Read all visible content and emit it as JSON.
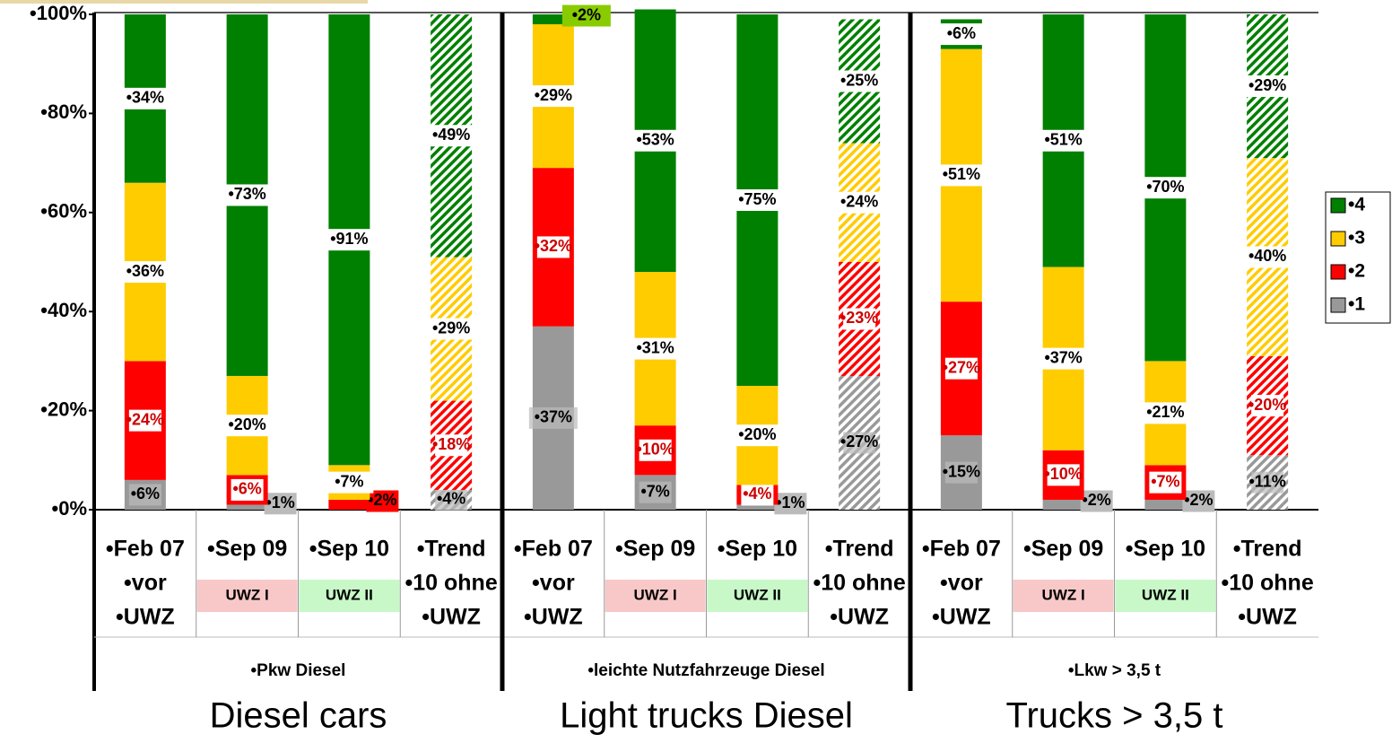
{
  "chart_data": {
    "type": "bar",
    "stacked": true,
    "ylim": [
      0,
      100
    ],
    "yticks": [
      {
        "value": 0,
        "label": "•0%"
      },
      {
        "value": 20,
        "label": "•20%"
      },
      {
        "value": 40,
        "label": "•40%"
      },
      {
        "value": 60,
        "label": "•60%"
      },
      {
        "value": 80,
        "label": "•80%"
      },
      {
        "value": 100,
        "label": "•100%"
      }
    ],
    "groups": [
      {
        "label": "•Pkw Diesel",
        "caption": "Diesel cars",
        "categories": [
          [
            "•Feb 07",
            "•vor",
            "•UWZ"
          ],
          [
            "•Sep 09"
          ],
          [
            "•Sep 10"
          ],
          [
            "•Trend",
            "•10 ohne",
            "•UWZ"
          ]
        ],
        "tags": [
          null,
          "UWZ I",
          "UWZ II",
          null
        ]
      },
      {
        "label": "•leichte Nutzfahrzeuge Diesel",
        "caption": "Light trucks Diesel",
        "categories": [
          [
            "•Feb 07",
            "•vor",
            "•UWZ"
          ],
          [
            "•Sep 09"
          ],
          [
            "•Sep 10"
          ],
          [
            "•Trend",
            "•10 ohne",
            "•UWZ"
          ]
        ],
        "tags": [
          null,
          "UWZ I",
          "UWZ II",
          null
        ]
      },
      {
        "label": "•Lkw > 3,5 t",
        "caption": "Trucks > 3,5 t",
        "categories": [
          [
            "•Feb 07",
            "•vor",
            "•UWZ"
          ],
          [
            "•Sep 09"
          ],
          [
            "•Sep 10"
          ],
          [
            "•Trend",
            "•10 ohne",
            "•UWZ"
          ]
        ],
        "tags": [
          null,
          "UWZ I",
          "UWZ II",
          null
        ]
      }
    ],
    "hatched": [
      false,
      false,
      false,
      true,
      false,
      false,
      false,
      true,
      false,
      false,
      false,
      true
    ],
    "series": [
      {
        "name": "•1",
        "color": "#999999",
        "values": [
          6,
          1,
          0,
          4,
          37,
          7,
          1,
          27,
          15,
          2,
          2,
          11
        ],
        "value_labels": [
          "•6%",
          "•1%",
          null,
          "•4%",
          "•37%",
          "•7%",
          "•1%",
          "•27%",
          "•15%",
          "•2%",
          "•2%",
          "•11%"
        ]
      },
      {
        "name": "•2",
        "color": "#ff0000",
        "values": [
          24,
          6,
          2,
          18,
          32,
          10,
          4,
          23,
          27,
          10,
          7,
          20
        ],
        "value_labels": [
          "•24%",
          "•6%",
          "•2%",
          "•18%",
          "•32%",
          "•10%",
          "•4%",
          "•23%",
          "•27%",
          "•10%",
          "•7%",
          "•20%"
        ]
      },
      {
        "name": "•3",
        "color": "#ffcc00",
        "values": [
          36,
          20,
          7,
          29,
          29,
          31,
          20,
          24,
          51,
          37,
          21,
          40
        ],
        "value_labels": [
          "•36%",
          "•20%",
          "•7%",
          "•29%",
          "•29%",
          "•31%",
          "•20%",
          "•24%",
          "•51%",
          "•37%",
          "•21%",
          "•40%"
        ]
      },
      {
        "name": "•4",
        "color": "#008000",
        "values": [
          34,
          73,
          91,
          49,
          2,
          53,
          75,
          25,
          6,
          51,
          70,
          29
        ],
        "value_labels": [
          "•34%",
          "•73%",
          "•91%",
          "•49%",
          "•2%",
          "•53%",
          "•75%",
          "•25%",
          "•6%",
          "•51%",
          "•70%",
          "•29%"
        ]
      }
    ],
    "legend": "right"
  }
}
